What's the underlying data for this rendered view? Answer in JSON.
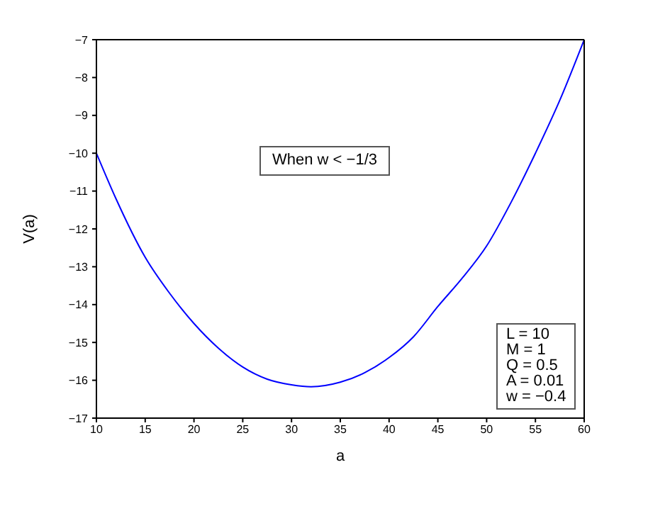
{
  "chart_data": {
    "type": "line",
    "xlabel": "a",
    "ylabel": "V(a)",
    "x": [
      10,
      12,
      15,
      17.5,
      20,
      22.5,
      25,
      27.5,
      30,
      32,
      35,
      37.5,
      40,
      42.5,
      45,
      47.5,
      50,
      52.5,
      55,
      57.5,
      60
    ],
    "series": [
      {
        "color": "#0000ff",
        "values": [
          -10,
          -11.2,
          -12.75,
          -13.7,
          -14.5,
          -15.15,
          -15.65,
          -15.97,
          -16.12,
          -16.17,
          -16.05,
          -15.8,
          -15.4,
          -14.85,
          -14.05,
          -13.3,
          -12.45,
          -11.3,
          -10,
          -8.6,
          -7
        ]
      }
    ],
    "xlim": [
      10,
      60
    ],
    "xticks": [
      10,
      15,
      20,
      25,
      30,
      35,
      40,
      45,
      50,
      55,
      60
    ],
    "ylim": [
      -17,
      -7
    ],
    "yticks": [
      -17,
      -16,
      -15,
      -14,
      -13,
      -12,
      -11,
      -10,
      -9,
      -8,
      -7
    ],
    "grid": false,
    "legend": false,
    "marker": "none",
    "line_style": "solid",
    "annotations": [
      "When w < −1/3",
      "L = 10\nM = 1\nQ = 0.5\nA = 0.01\nw = −0.4"
    ]
  }
}
